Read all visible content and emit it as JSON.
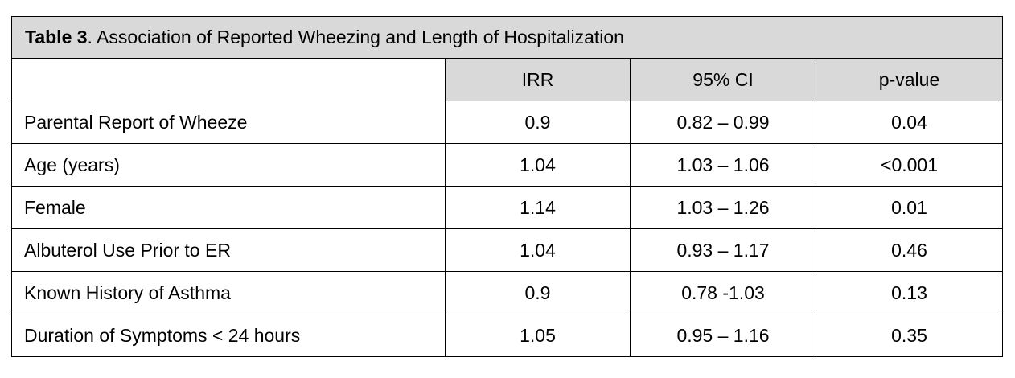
{
  "table": {
    "caption_bold": "Table 3",
    "caption_rest": ". Association of Reported Wheezing and Length of Hospitalization",
    "headers": [
      "",
      "IRR",
      "95% CI",
      "p-value"
    ],
    "rows": [
      {
        "label": "Parental Report of Wheeze",
        "irr": "0.9",
        "ci": "0.82 – 0.99",
        "p": "0.04"
      },
      {
        "label": "Age (years)",
        "irr": "1.04",
        "ci": "1.03 – 1.06",
        "p": "<0.001"
      },
      {
        "label": "Female",
        "irr": "1.14",
        "ci": "1.03 – 1.26",
        "p": "0.01"
      },
      {
        "label": "Albuterol Use Prior to ER",
        "irr": "1.04",
        "ci": "0.93 – 1.17",
        "p": "0.46"
      },
      {
        "label": "Known History of Asthma",
        "irr": "0.9",
        "ci": "0.78 -1.03",
        "p": "0.13"
      },
      {
        "label": "Duration of Symptoms < 24 hours",
        "irr": "1.05",
        "ci": "0.95 – 1.16",
        "p": "0.35"
      }
    ]
  }
}
